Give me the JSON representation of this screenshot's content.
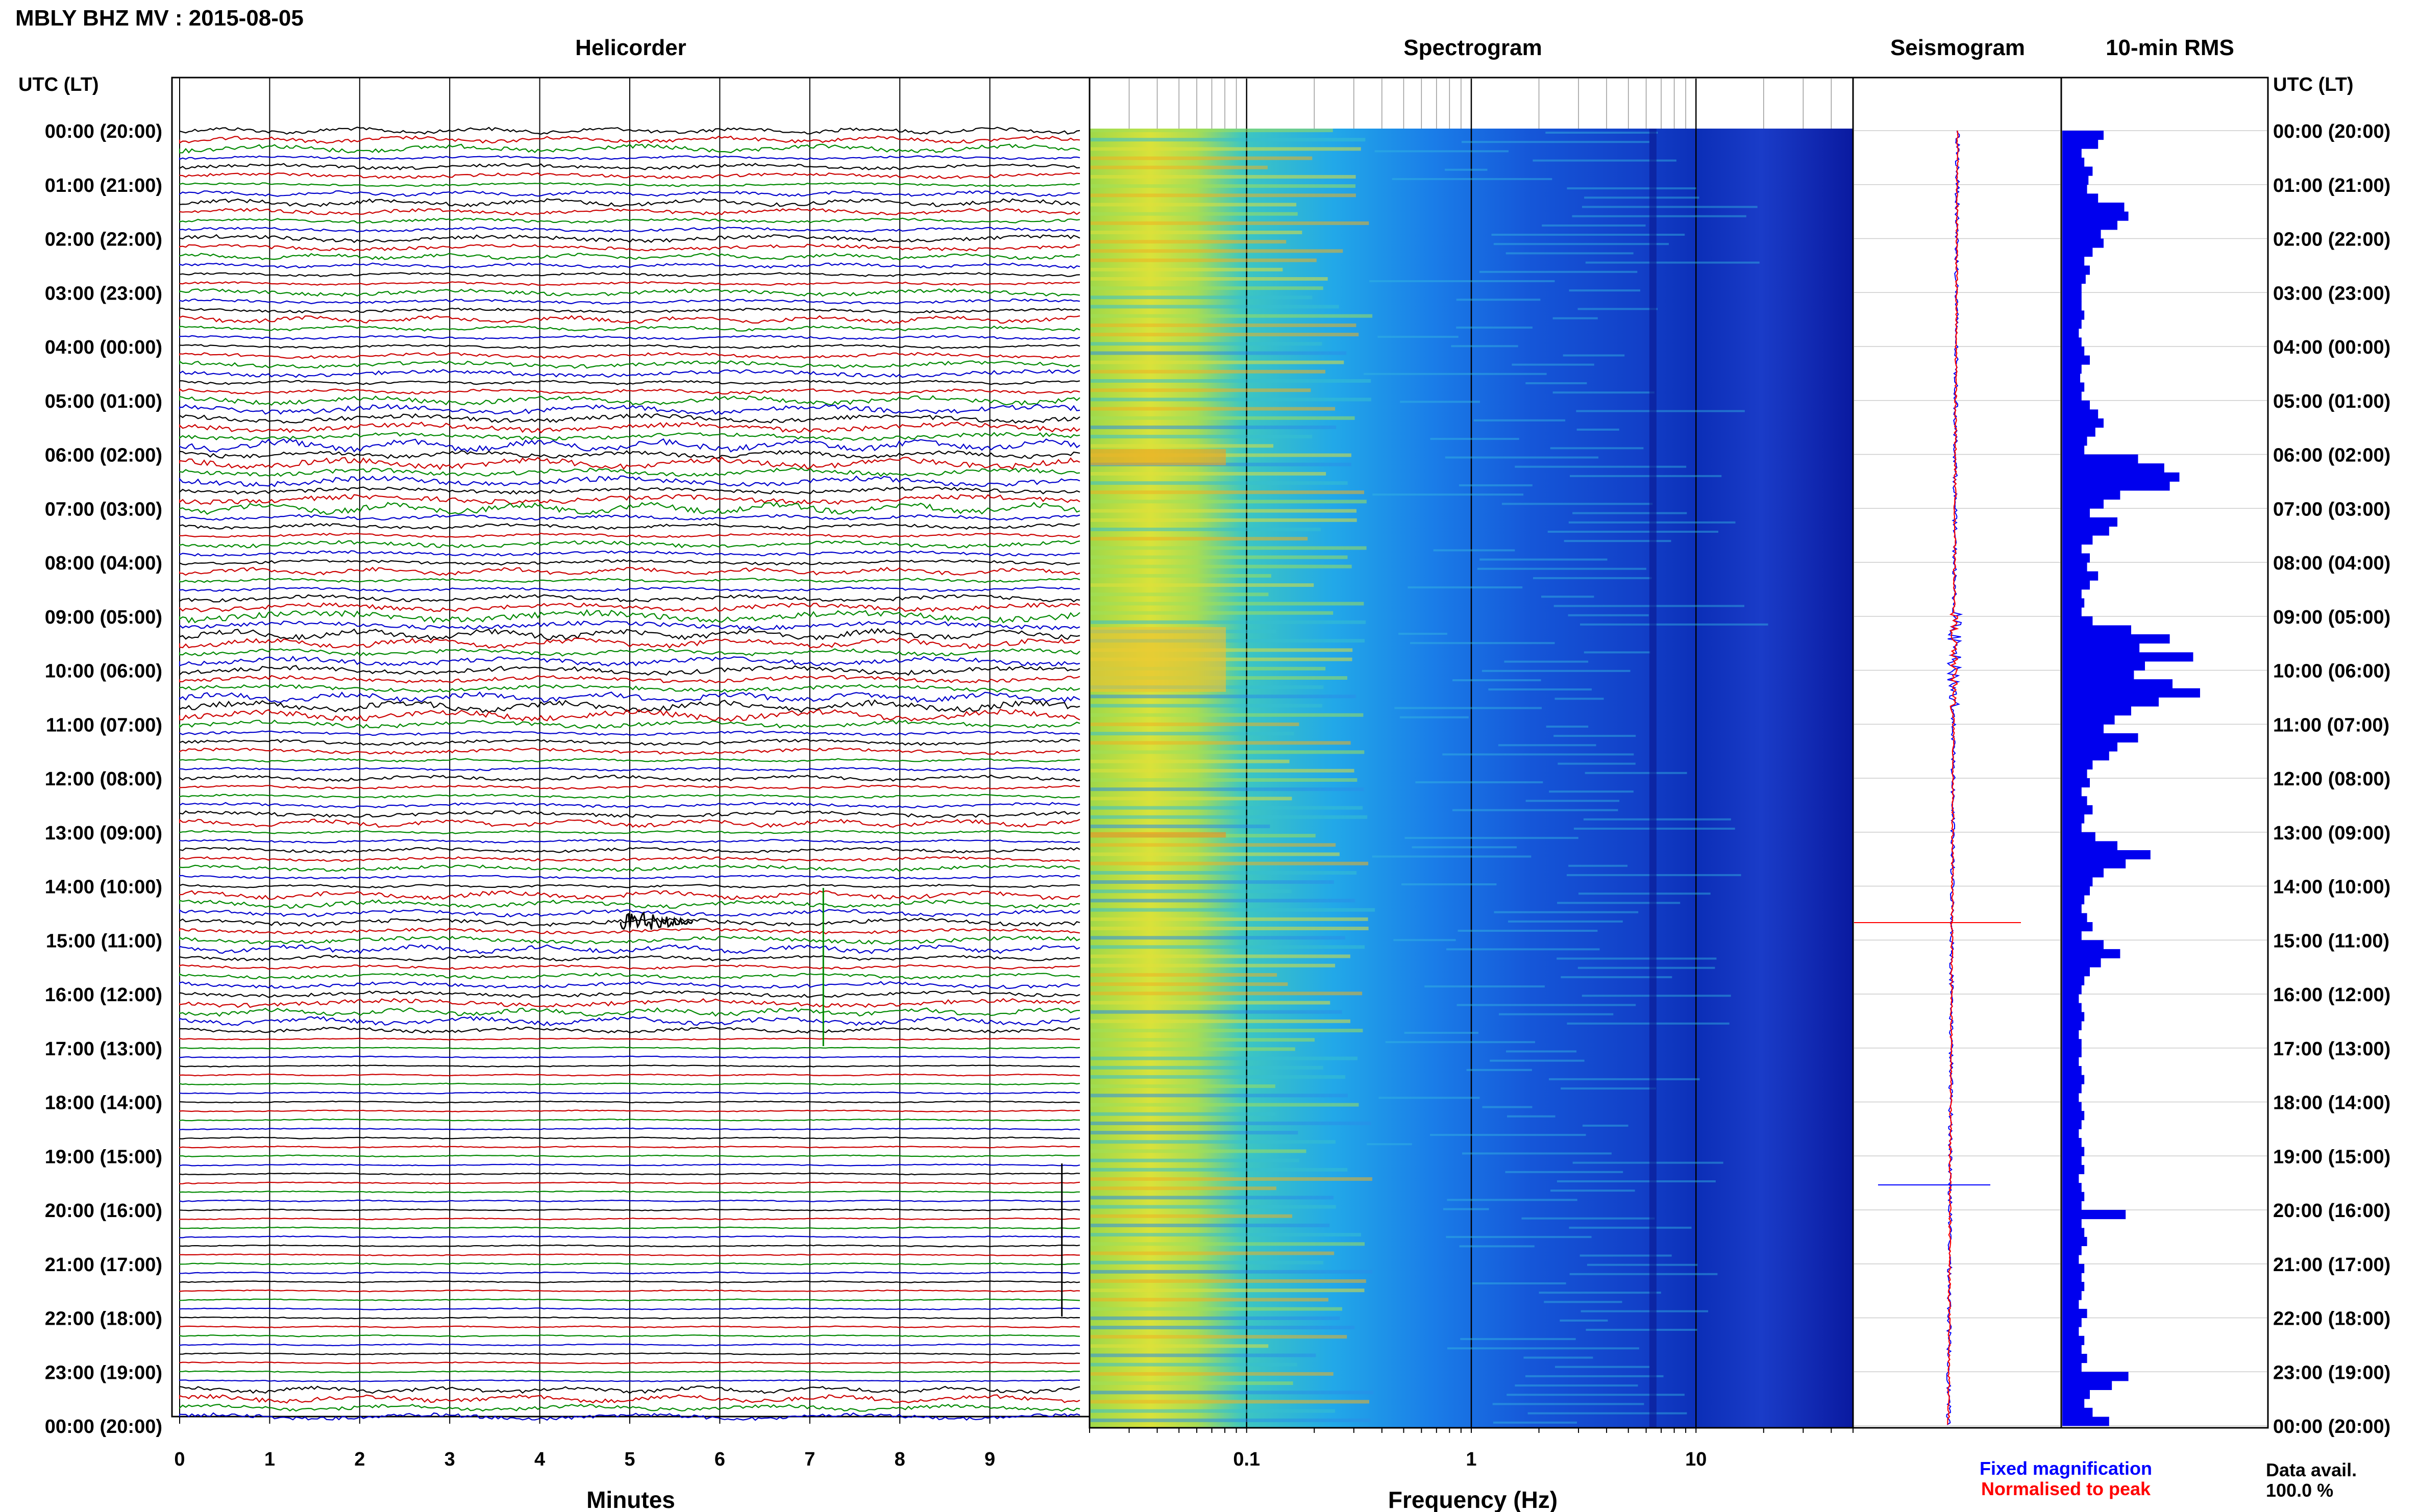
{
  "header": {
    "title": "MBLY BHZ MV : 2015-08-05"
  },
  "panels": {
    "helicorder": "Helicorder",
    "spectrogram": "Spectrogram",
    "seismogram": "Seismogram",
    "rms": "10-min RMS"
  },
  "axes": {
    "left_label": "UTC (LT)",
    "right_label": "UTC (LT)",
    "minutes_label": "Minutes",
    "frequency_label": "Frequency (Hz)"
  },
  "time_ticks": [
    "00:00 (20:00)",
    "01:00 (21:00)",
    "02:00 (22:00)",
    "03:00 (23:00)",
    "04:00 (00:00)",
    "05:00 (01:00)",
    "06:00 (02:00)",
    "07:00 (03:00)",
    "08:00 (04:00)",
    "09:00 (05:00)",
    "10:00 (06:00)",
    "11:00 (07:00)",
    "12:00 (08:00)",
    "13:00 (09:00)",
    "14:00 (10:00)",
    "15:00 (11:00)",
    "16:00 (12:00)",
    "17:00 (13:00)",
    "18:00 (14:00)",
    "19:00 (15:00)",
    "20:00 (16:00)",
    "21:00 (17:00)",
    "22:00 (18:00)",
    "23:00 (19:00)",
    "00:00 (20:00)"
  ],
  "minute_ticks": [
    "0",
    "1",
    "2",
    "3",
    "4",
    "5",
    "6",
    "7",
    "8",
    "9"
  ],
  "freq_ticks": [
    {
      "value": 0.1,
      "label": "0.1"
    },
    {
      "value": 1,
      "label": "1"
    },
    {
      "value": 10,
      "label": "10"
    }
  ],
  "legend": {
    "fixed": "Fixed magnification",
    "normalised": "Normalised to peak",
    "fixed_color": "#0000ff",
    "normalised_color": "#ff0000"
  },
  "availability": {
    "label": "Data avail.",
    "value": "100.0 %"
  },
  "colors": {
    "trace_cycle": [
      "#000000",
      "#cc0000",
      "#008800",
      "#0000cc"
    ],
    "rms_bar": "#0000ee",
    "spectrogram_low": "#0a1aa0",
    "spectrogram_high": "#ff8c00"
  },
  "chart_data": [
    {
      "type": "line",
      "title": "Helicorder",
      "xlabel": "Minutes",
      "xlim": [
        0,
        10
      ],
      "rows": 144,
      "row_minutes": 10,
      "events": [
        {
          "utc": "14:40",
          "minute": 5.3,
          "note": "large burst"
        },
        {
          "utc": "09:00",
          "minute": 6.0,
          "note": "long-period wiggle"
        }
      ]
    },
    {
      "type": "heatmap",
      "title": "Spectrogram",
      "xlabel": "Frequency (Hz)",
      "xscale": "log",
      "xlim": [
        0.02,
        50
      ],
      "ylim_label": [
        "00:00",
        "00:00"
      ]
    },
    {
      "type": "line",
      "title": "Seismogram",
      "series": [
        {
          "name": "Fixed magnification"
        },
        {
          "name": "Normalised to peak"
        }
      ]
    },
    {
      "type": "bar",
      "title": "10-min RMS",
      "orientation": "horizontal",
      "values": [
        0.3,
        0.26,
        0.14,
        0.16,
        0.22,
        0.19,
        0.18,
        0.26,
        0.45,
        0.48,
        0.4,
        0.28,
        0.3,
        0.22,
        0.16,
        0.2,
        0.17,
        0.14,
        0.14,
        0.14,
        0.16,
        0.14,
        0.12,
        0.14,
        0.16,
        0.2,
        0.14,
        0.13,
        0.16,
        0.14,
        0.2,
        0.26,
        0.3,
        0.24,
        0.18,
        0.16,
        0.55,
        0.74,
        0.85,
        0.78,
        0.42,
        0.3,
        0.2,
        0.4,
        0.34,
        0.22,
        0.14,
        0.2,
        0.18,
        0.26,
        0.2,
        0.14,
        0.16,
        0.14,
        0.22,
        0.5,
        0.78,
        0.56,
        0.95,
        0.6,
        0.52,
        0.8,
        1.0,
        0.7,
        0.5,
        0.38,
        0.3,
        0.55,
        0.4,
        0.34,
        0.22,
        0.18,
        0.2,
        0.14,
        0.18,
        0.22,
        0.16,
        0.14,
        0.24,
        0.4,
        0.64,
        0.46,
        0.3,
        0.22,
        0.2,
        0.16,
        0.14,
        0.18,
        0.22,
        0.14,
        0.3,
        0.42,
        0.28,
        0.2,
        0.16,
        0.14,
        0.12,
        0.14,
        0.16,
        0.14,
        0.12,
        0.14,
        0.14,
        0.12,
        0.14,
        0.16,
        0.14,
        0.12,
        0.14,
        0.16,
        0.14,
        0.12,
        0.14,
        0.16,
        0.14,
        0.16,
        0.12,
        0.14,
        0.16,
        0.14,
        0.46,
        0.14,
        0.16,
        0.18,
        0.14,
        0.12,
        0.16,
        0.14,
        0.16,
        0.14,
        0.12,
        0.18,
        0.14,
        0.12,
        0.16,
        0.14,
        0.18,
        0.14,
        0.48,
        0.36,
        0.2,
        0.16,
        0.22,
        0.34
      ]
    }
  ]
}
